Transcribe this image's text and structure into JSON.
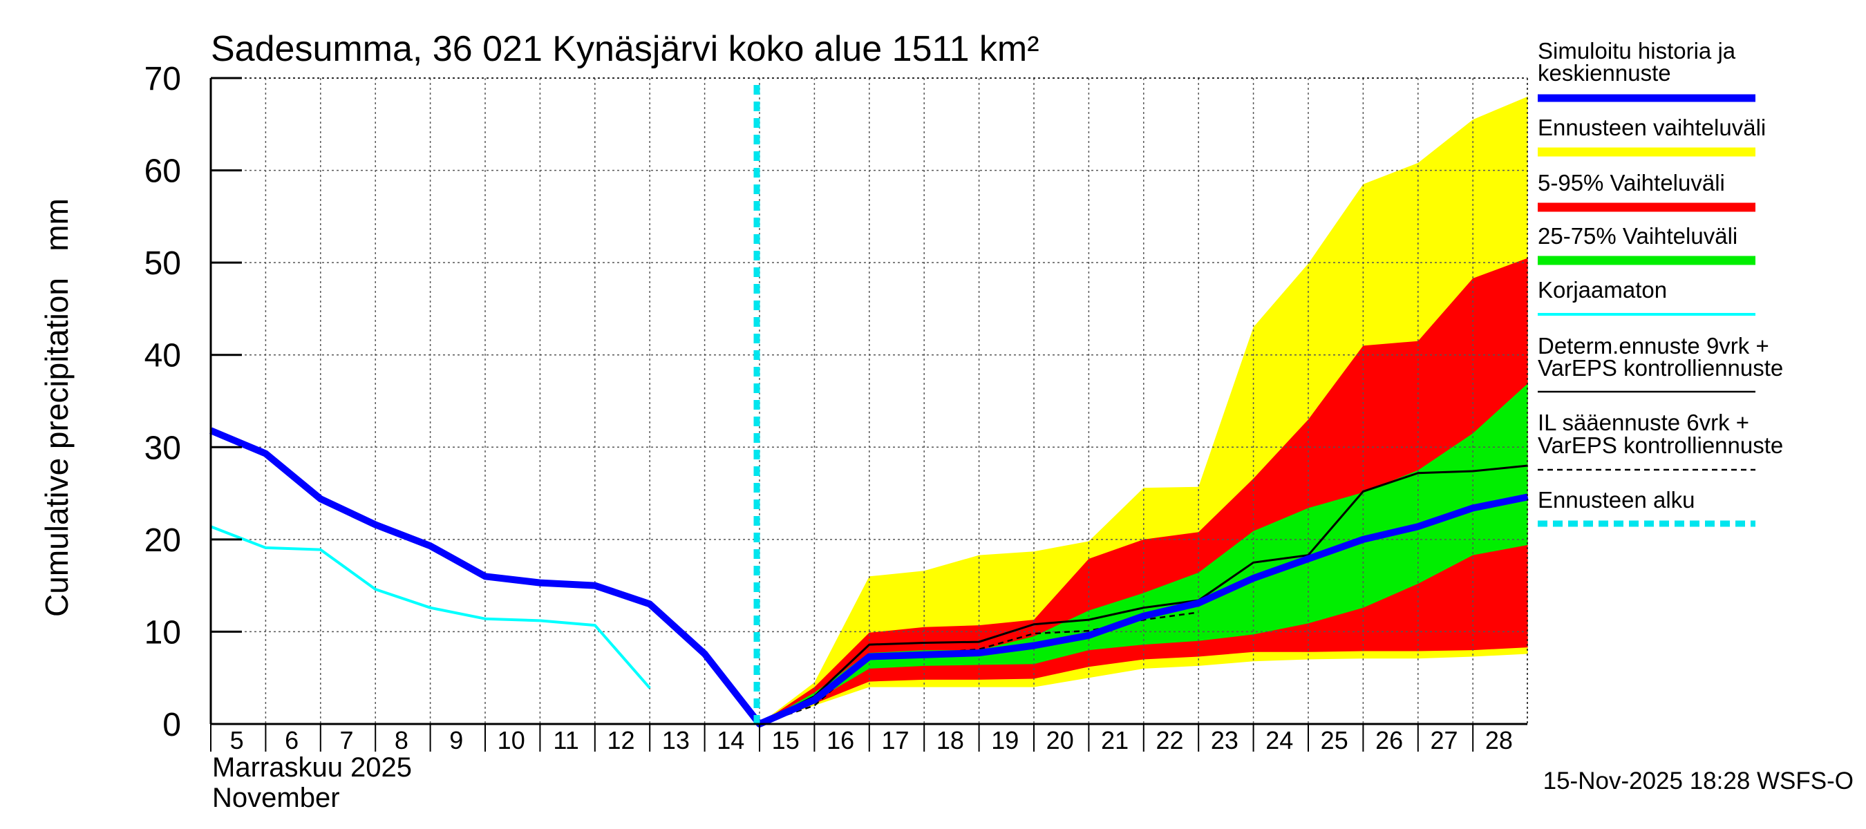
{
  "chart_data": {
    "type": "area",
    "title": "Sadesumma, 36 021 Kynäsjärvi koko alue 1511 km²",
    "ylabel": "Cumulative precipitation   mm",
    "xlabel_line1": "Marraskuu 2025",
    "xlabel_line2": "November",
    "timestamp": "15-Nov-2025 18:28 WSFS-O",
    "ylim": [
      0,
      70
    ],
    "xlim": [
      5,
      29
    ],
    "yticks": [
      0,
      10,
      20,
      30,
      40,
      50,
      60,
      70
    ],
    "ytick_labels": [
      "0",
      "10",
      "20",
      "30",
      "40",
      "50",
      "60",
      "70"
    ],
    "xticks": [
      5,
      6,
      7,
      8,
      9,
      10,
      11,
      12,
      13,
      14,
      15,
      16,
      17,
      18,
      19,
      20,
      21,
      22,
      23,
      24,
      25,
      26,
      27,
      28
    ],
    "xtick_labels": [
      "5",
      "6",
      "7",
      "8",
      "9",
      "10",
      "11",
      "12",
      "13",
      "14",
      "15",
      "16",
      "17",
      "18",
      "19",
      "20",
      "21",
      "22",
      "23",
      "24",
      "25",
      "26",
      "27",
      "28"
    ],
    "grid": true,
    "forecast_start_x": 15,
    "colors": {
      "history": "#0000ff",
      "range_full": "#ffff00",
      "range_5_95": "#ff0000",
      "range_25_75": "#00ee00",
      "uncorrected": "#00ffff",
      "determ": "#000000",
      "il": "#000000",
      "forecast_start": "#00e5ee"
    },
    "bands": {
      "x": [
        15,
        16,
        17,
        18,
        19,
        20,
        21,
        22,
        23,
        24,
        25,
        26,
        27,
        28,
        29
      ],
      "full": {
        "low": [
          0,
          2.0,
          4.0,
          4.0,
          4.0,
          4.0,
          5.0,
          6.0,
          6.3,
          6.8,
          7.0,
          7.1,
          7.1,
          7.3,
          7.6
        ],
        "high": [
          0,
          4.5,
          16.0,
          16.6,
          18.3,
          18.7,
          19.8,
          25.6,
          25.7,
          43.0,
          49.9,
          58.5,
          60.8,
          65.5,
          68.0
        ]
      },
      "p5_95": {
        "low": [
          0,
          2.2,
          4.6,
          4.8,
          4.8,
          4.9,
          6.2,
          7.0,
          7.3,
          7.8,
          7.8,
          7.9,
          7.9,
          8.0,
          8.3
        ],
        "high": [
          0,
          4.0,
          9.9,
          10.5,
          10.7,
          11.3,
          17.9,
          20.0,
          20.8,
          26.6,
          33.0,
          41.0,
          41.5,
          48.3,
          50.5
        ]
      },
      "p25_75": {
        "low": [
          0,
          2.5,
          6.0,
          6.3,
          6.4,
          6.5,
          8.0,
          8.6,
          9.0,
          9.7,
          10.9,
          12.6,
          15.2,
          18.3,
          19.4
        ],
        "high": [
          0,
          3.4,
          7.7,
          8.0,
          8.0,
          9.5,
          12.3,
          14.2,
          16.4,
          20.9,
          23.4,
          25.1,
          27.5,
          31.5,
          36.9
        ]
      }
    },
    "series": [
      {
        "name": "Simuloitu historia ja keskiennuste",
        "x": [
          5,
          6,
          7,
          8,
          9,
          10,
          11,
          12,
          13,
          14,
          15,
          16,
          17,
          18,
          19,
          20,
          21,
          22,
          23,
          24,
          25,
          26,
          27,
          28,
          29
        ],
        "values": [
          31.8,
          29.3,
          24.4,
          21.6,
          19.3,
          16.0,
          15.3,
          15.0,
          13.0,
          7.6,
          0.0,
          2.6,
          7.3,
          7.5,
          7.7,
          8.5,
          9.6,
          11.7,
          13.1,
          15.8,
          17.9,
          20.0,
          21.4,
          23.4,
          24.6
        ]
      },
      {
        "name": "Korjaamaton",
        "x": [
          5,
          6,
          7,
          8,
          9,
          10,
          11,
          12,
          13
        ],
        "values": [
          21.4,
          19.1,
          18.9,
          14.6,
          12.6,
          11.4,
          11.2,
          10.7,
          3.9
        ]
      },
      {
        "name": "Determ.ennuste 9vrk + VarEPS kontrolliennuste",
        "x": [
          15,
          16,
          17,
          18,
          19,
          20,
          21,
          22,
          23,
          24,
          25,
          26,
          27,
          28,
          29
        ],
        "values": [
          0.0,
          3.0,
          8.6,
          8.8,
          8.9,
          10.8,
          11.3,
          12.6,
          13.4,
          17.5,
          18.3,
          25.2,
          27.2,
          27.4,
          28.0
        ]
      },
      {
        "name": "IL sääennuste 6vrk + VarEPS kontrolliennuste",
        "x": [
          15,
          16,
          17,
          18,
          19,
          20,
          21,
          22,
          23
        ],
        "values": [
          0.0,
          2.0,
          7.3,
          7.6,
          8.1,
          9.8,
          10.1,
          11.3,
          12.1
        ]
      }
    ],
    "legend": {
      "position": "right",
      "items": [
        {
          "label": "Simuloitu historia ja",
          "label2": "keskiennuste",
          "key": "history"
        },
        {
          "label": "Ennusteen vaihteluväli",
          "label2": "",
          "key": "range_full"
        },
        {
          "label": "5-95% Vaihteluväli",
          "label2": "",
          "key": "range_5_95"
        },
        {
          "label": "25-75% Vaihteluväli",
          "label2": "",
          "key": "range_25_75"
        },
        {
          "label": "Korjaamaton",
          "label2": "",
          "key": "uncorrected"
        },
        {
          "label": "Determ.ennuste 9vrk  +",
          "label2": "VarEPS kontrolliennuste",
          "key": "determ"
        },
        {
          "label": "IL sääennuste 6vrk  +",
          "label2": "  VarEPS kontrolliennuste",
          "key": "il"
        },
        {
          "label": "Ennusteen alku",
          "label2": "",
          "key": "forecast_start"
        }
      ]
    }
  }
}
